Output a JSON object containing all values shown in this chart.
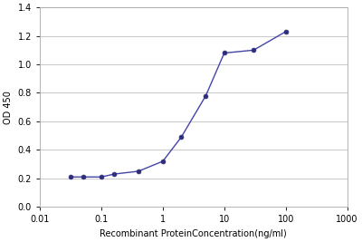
{
  "x_values": [
    0.032,
    0.05,
    0.1,
    0.16,
    0.4,
    1.0,
    2.0,
    5.0,
    10.0,
    30.0,
    100.0
  ],
  "y_values": [
    0.21,
    0.21,
    0.21,
    0.23,
    0.25,
    0.32,
    0.49,
    0.78,
    1.08,
    1.1,
    1.23
  ],
  "xlabel": "Recombinant ProteinConcentration(ng/ml)",
  "ylabel": "OD 450",
  "xlim": [
    0.01,
    1000
  ],
  "ylim": [
    0,
    1.4
  ],
  "yticks": [
    0,
    0.2,
    0.4,
    0.6,
    0.8,
    1.0,
    1.2,
    1.4
  ],
  "xticks": [
    0.01,
    0.1,
    1,
    10,
    100,
    1000
  ],
  "xtick_labels": [
    "0.01",
    "0.1",
    "1",
    "10",
    "100",
    "1000"
  ],
  "line_color": "#4444aa",
  "marker_color": "#2d2d7a",
  "background_color": "#ffffff",
  "fig_background": "#ffffff",
  "grid_color": "#c8c8c8",
  "label_fontsize": 7,
  "tick_fontsize": 7,
  "ylabel_fontsize": 7
}
